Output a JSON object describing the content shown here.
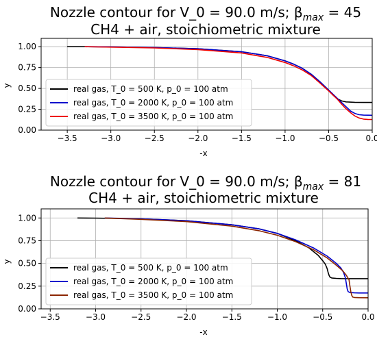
{
  "chart_data": [
    {
      "type": "line",
      "title": "Nozzle contour for V_0 = 90.0 m/s; β",
      "title_sub": "max",
      "title_value": " = 45",
      "subtitle": "CH4 + air, stoichiometric mixture",
      "xlabel": "-x",
      "ylabel": "y",
      "xlim": [
        -3.8,
        0.0
      ],
      "ylim": [
        0.0,
        1.1
      ],
      "xticks": [
        "−3.5",
        "−3.0",
        "−2.5",
        "−2.0",
        "−1.5",
        "−1.0",
        "−0.5",
        "0.0"
      ],
      "xtick_values": [
        -3.5,
        -3.0,
        -2.5,
        -2.0,
        -1.5,
        -1.0,
        -0.5,
        0.0
      ],
      "yticks": [
        "0.00",
        "0.25",
        "0.50",
        "0.75",
        "1.00"
      ],
      "ytick_values": [
        0.0,
        0.25,
        0.5,
        0.75,
        1.0
      ],
      "grid": true,
      "legend_position": "lower-left",
      "series": [
        {
          "name": "real gas, T_0 = 500 K, p_0 = 100 atm",
          "color": "#000000",
          "x": [
            -3.5,
            -3.3,
            -3.0,
            -2.5,
            -2.0,
            -1.5,
            -1.2,
            -1.0,
            -0.9,
            -0.8,
            -0.7,
            -0.6,
            -0.5,
            -0.45,
            -0.4,
            -0.35,
            -0.3,
            -0.2,
            -0.1,
            0.0
          ],
          "y": [
            1.0,
            1.0,
            0.998,
            0.99,
            0.975,
            0.94,
            0.89,
            0.83,
            0.79,
            0.74,
            0.67,
            0.58,
            0.48,
            0.42,
            0.375,
            0.35,
            0.338,
            0.333,
            0.332,
            0.332
          ]
        },
        {
          "name": "real gas, T_0 = 2000 K, p_0 = 100 atm",
          "color": "#0000cc",
          "x": [
            -3.3,
            -3.0,
            -2.5,
            -2.0,
            -1.5,
            -1.2,
            -1.0,
            -0.9,
            -0.8,
            -0.7,
            -0.6,
            -0.5,
            -0.4,
            -0.35,
            -0.3,
            -0.25,
            -0.2,
            -0.15,
            -0.1,
            0.0
          ],
          "y": [
            1.0,
            0.998,
            0.99,
            0.975,
            0.94,
            0.89,
            0.83,
            0.79,
            0.74,
            0.67,
            0.58,
            0.48,
            0.38,
            0.33,
            0.28,
            0.23,
            0.2,
            0.185,
            0.18,
            0.178
          ]
        },
        {
          "name": "real gas, T_0 = 3500 K, p_0 = 100 atm",
          "color": "#ee0000",
          "x": [
            -3.3,
            -3.0,
            -2.5,
            -2.0,
            -1.5,
            -1.2,
            -1.0,
            -0.9,
            -0.8,
            -0.7,
            -0.6,
            -0.5,
            -0.4,
            -0.35,
            -0.3,
            -0.25,
            -0.2,
            -0.15,
            -0.1,
            -0.05,
            0.0
          ],
          "y": [
            1.0,
            0.995,
            0.985,
            0.965,
            0.925,
            0.87,
            0.81,
            0.77,
            0.72,
            0.655,
            0.565,
            0.47,
            0.37,
            0.31,
            0.255,
            0.21,
            0.17,
            0.145,
            0.132,
            0.128,
            0.127
          ]
        }
      ]
    },
    {
      "type": "line",
      "title": "Nozzle contour for V_0 = 90.0 m/s; β",
      "title_sub": "max",
      "title_value": " = 81",
      "subtitle": "CH4 + air, stoichiometric mixture",
      "xlabel": "-x",
      "ylabel": "y",
      "xlim": [
        -3.6,
        0.0
      ],
      "ylim": [
        0.0,
        1.1
      ],
      "xticks": [
        "−3.5",
        "−3.0",
        "−2.5",
        "−2.0",
        "−1.5",
        "−1.0",
        "−0.5",
        "0.0"
      ],
      "xtick_values": [
        -3.5,
        -3.0,
        -2.5,
        -2.0,
        -1.5,
        -1.0,
        -0.5,
        0.0
      ],
      "yticks": [
        "0.00",
        "0.25",
        "0.50",
        "0.75",
        "1.00"
      ],
      "ytick_values": [
        0.0,
        0.25,
        0.5,
        0.75,
        1.0
      ],
      "grid": true,
      "legend_position": "lower-left",
      "series": [
        {
          "name": "real gas, T_0 = 500 K, p_0 = 100 atm",
          "color": "#000000",
          "x": [
            -3.2,
            -3.0,
            -2.5,
            -2.0,
            -1.5,
            -1.2,
            -1.0,
            -0.8,
            -0.65,
            -0.55,
            -0.5,
            -0.47,
            -0.45,
            -0.44,
            -0.43,
            -0.42,
            -0.4,
            -0.35,
            -0.3,
            -0.2,
            0.0
          ],
          "y": [
            1.0,
            0.998,
            0.99,
            0.97,
            0.925,
            0.88,
            0.83,
            0.75,
            0.67,
            0.59,
            0.53,
            0.49,
            0.44,
            0.4,
            0.37,
            0.35,
            0.34,
            0.335,
            0.333,
            0.332,
            0.332
          ]
        },
        {
          "name": "real gas, T_0 = 2000 K, p_0 = 100 atm",
          "color": "#0000cc",
          "x": [
            -2.9,
            -2.5,
            -2.0,
            -1.5,
            -1.2,
            -1.0,
            -0.8,
            -0.6,
            -0.45,
            -0.35,
            -0.3,
            -0.27,
            -0.25,
            -0.24,
            -0.23,
            -0.22,
            -0.2,
            -0.15,
            -0.1,
            0.0
          ],
          "y": [
            1.0,
            0.99,
            0.97,
            0.925,
            0.88,
            0.83,
            0.76,
            0.67,
            0.58,
            0.5,
            0.45,
            0.4,
            0.34,
            0.28,
            0.22,
            0.19,
            0.18,
            0.176,
            0.175,
            0.175
          ]
        },
        {
          "name": "real gas, T_0 = 3500 K, p_0 = 100 atm",
          "color": "#8b2500",
          "x": [
            -2.9,
            -2.5,
            -2.0,
            -1.5,
            -1.2,
            -1.0,
            -0.8,
            -0.6,
            -0.45,
            -0.35,
            -0.28,
            -0.24,
            -0.21,
            -0.2,
            -0.19,
            -0.18,
            -0.17,
            -0.15,
            -0.1,
            0.0
          ],
          "y": [
            1.0,
            0.985,
            0.96,
            0.91,
            0.86,
            0.81,
            0.74,
            0.65,
            0.56,
            0.48,
            0.42,
            0.37,
            0.32,
            0.25,
            0.19,
            0.15,
            0.13,
            0.125,
            0.123,
            0.122
          ]
        }
      ]
    }
  ]
}
